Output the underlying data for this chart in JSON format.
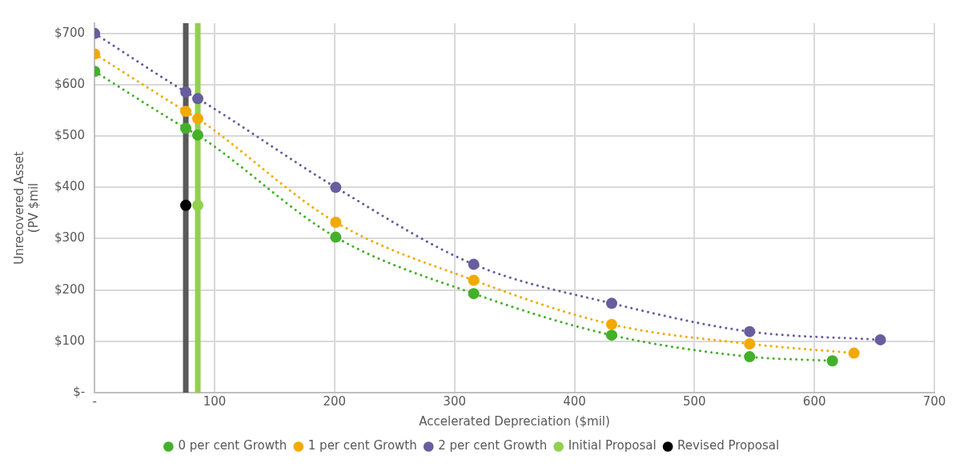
{
  "chart_data": {
    "type": "line",
    "xlabel": "Accelerated Depreciation ($mil)",
    "ylabel": "Unrecovered Asset\n(PV $mil",
    "xlim": [
      0,
      700
    ],
    "xticks": [
      {
        "value": 0,
        "label": "-"
      },
      100,
      200,
      300,
      400,
      500,
      600,
      700
    ],
    "ylim": [
      0,
      720
    ],
    "yticks": [
      {
        "value": 0,
        "label": "$-"
      },
      {
        "value": 100,
        "label": "$100"
      },
      {
        "value": 200,
        "label": "$200"
      },
      {
        "value": 300,
        "label": "$300"
      },
      {
        "value": 400,
        "label": "$400"
      },
      {
        "value": 500,
        "label": "$500"
      },
      {
        "value": 600,
        "label": "$600"
      },
      {
        "value": 700,
        "label": "$700"
      }
    ],
    "grid": true,
    "legend": "bottom",
    "marker": "circle",
    "line_style": "dotted",
    "series": [
      {
        "name": "0 per cent Growth",
        "color": "#43b02a",
        "x": [
          0,
          76,
          86,
          201,
          316,
          431,
          546,
          615
        ],
        "values": [
          626,
          515,
          502,
          303,
          193,
          112,
          70,
          62
        ]
      },
      {
        "name": "1 per cent Growth",
        "color": "#f2a900",
        "x": [
          0,
          76,
          86,
          201,
          316,
          431,
          546,
          633
        ],
        "values": [
          660,
          548,
          534,
          332,
          219,
          133,
          95,
          77
        ]
      },
      {
        "name": "2 per cent Growth",
        "color": "#665e9e",
        "x": [
          0,
          76,
          86,
          201,
          316,
          431,
          546,
          655
        ],
        "values": [
          700,
          586,
          573,
          400,
          250,
          174,
          119,
          103
        ]
      },
      {
        "name": "Initial Proposal",
        "type": "scatter",
        "color": "#92d050",
        "x": [
          86
        ],
        "values": [
          365
        ]
      },
      {
        "name": "Revised Proposal",
        "type": "scatter",
        "color": "#000000",
        "x": [
          76
        ],
        "values": [
          365
        ]
      }
    ],
    "ref_lines": [
      {
        "axis": "x",
        "value": 86,
        "color": "#92d050",
        "line_style": "solid"
      },
      {
        "axis": "x",
        "value": 76,
        "color": "#595959",
        "line_style": "solid"
      }
    ]
  }
}
